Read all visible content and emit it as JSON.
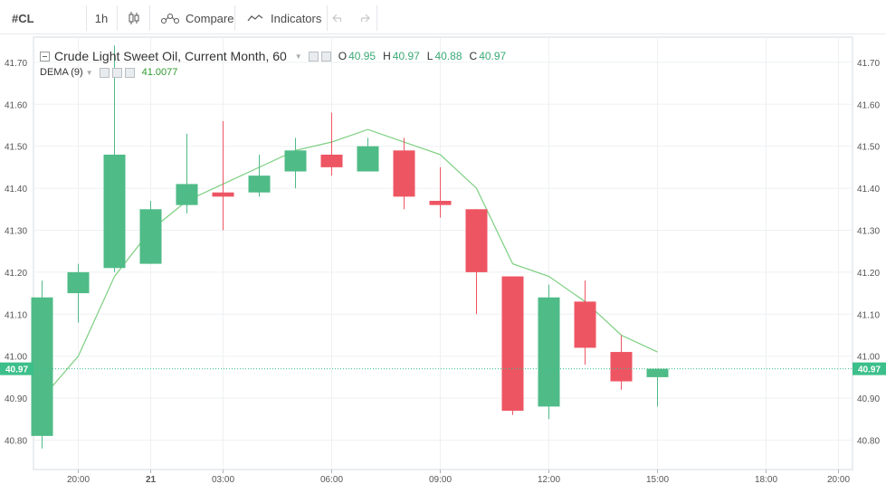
{
  "toolbar": {
    "symbol": "#CL",
    "interval": "1h",
    "compare_label": "Compare",
    "indicators_label": "Indicators"
  },
  "legend": {
    "title": "Crude Light Sweet Oil, Current Month, 60",
    "o_label": "O",
    "o_value": "40.95",
    "h_label": "H",
    "h_value": "40.97",
    "l_label": "L",
    "l_value": "40.88",
    "c_label": "C",
    "c_value": "40.97",
    "dema_name": "DEMA (9)",
    "dema_value": "41.0077"
  },
  "colors": {
    "up": "#4fbb87",
    "down": "#ee5563",
    "dema": "#7ccf80",
    "last_price_line": "#3cbf8a",
    "grid": "#eef0f2",
    "axis_text": "#555555"
  },
  "chart_data": {
    "type": "candlestick",
    "y_ticks": [
      "41.70",
      "41.60",
      "41.50",
      "41.40",
      "41.30",
      "41.20",
      "41.10",
      "41.00",
      "40.90",
      "40.80"
    ],
    "y_tick_values": [
      41.7,
      41.6,
      41.5,
      41.4,
      41.3,
      41.2,
      41.1,
      41.0,
      40.9,
      40.8
    ],
    "ylim": [
      40.73,
      41.76
    ],
    "x_ticks": [
      {
        "label": "20:00",
        "index": 1,
        "bold": false
      },
      {
        "label": "21",
        "index": 3,
        "bold": true
      },
      {
        "label": "03:00",
        "index": 5,
        "bold": false
      },
      {
        "label": "06:00",
        "index": 8,
        "bold": false
      },
      {
        "label": "09:00",
        "index": 11,
        "bold": false
      },
      {
        "label": "12:00",
        "index": 14,
        "bold": false
      },
      {
        "label": "15:00",
        "index": 17,
        "bold": false
      },
      {
        "label": "18:00",
        "index": 20,
        "bold": false
      },
      {
        "label": "20:00",
        "index": 22,
        "bold": false
      }
    ],
    "candles": [
      {
        "o": 40.81,
        "h": 41.18,
        "l": 40.78,
        "c": 41.14
      },
      {
        "o": 41.15,
        "h": 41.22,
        "l": 41.08,
        "c": 41.2
      },
      {
        "o": 41.21,
        "h": 41.74,
        "l": 41.2,
        "c": 41.48
      },
      {
        "o": 41.22,
        "h": 41.37,
        "l": 41.22,
        "c": 41.35
      },
      {
        "o": 41.36,
        "h": 41.53,
        "l": 41.34,
        "c": 41.41
      },
      {
        "o": 41.39,
        "h": 41.56,
        "l": 41.3,
        "c": 41.38
      },
      {
        "o": 41.39,
        "h": 41.48,
        "l": 41.38,
        "c": 41.43
      },
      {
        "o": 41.44,
        "h": 41.52,
        "l": 41.4,
        "c": 41.49
      },
      {
        "o": 41.48,
        "h": 41.58,
        "l": 41.43,
        "c": 41.45
      },
      {
        "o": 41.44,
        "h": 41.52,
        "l": 41.44,
        "c": 41.5
      },
      {
        "o": 41.49,
        "h": 41.52,
        "l": 41.35,
        "c": 41.38
      },
      {
        "o": 41.37,
        "h": 41.45,
        "l": 41.33,
        "c": 41.36
      },
      {
        "o": 41.35,
        "h": 41.35,
        "l": 41.1,
        "c": 41.2
      },
      {
        "o": 41.19,
        "h": 41.19,
        "l": 40.86,
        "c": 40.87
      },
      {
        "o": 40.88,
        "h": 41.17,
        "l": 40.85,
        "c": 41.14
      },
      {
        "o": 41.13,
        "h": 41.18,
        "l": 40.98,
        "c": 41.02
      },
      {
        "o": 41.01,
        "h": 41.05,
        "l": 40.92,
        "c": 40.94
      },
      {
        "o": 40.95,
        "h": 40.97,
        "l": 40.88,
        "c": 40.97
      }
    ],
    "dema": [
      40.9,
      41.0,
      41.19,
      41.3,
      41.37,
      41.41,
      41.45,
      41.49,
      41.51,
      41.54,
      41.51,
      41.48,
      41.4,
      41.22,
      41.19,
      41.13,
      41.05,
      41.01
    ],
    "last_price": 40.97,
    "last_price_label": "40.97"
  }
}
